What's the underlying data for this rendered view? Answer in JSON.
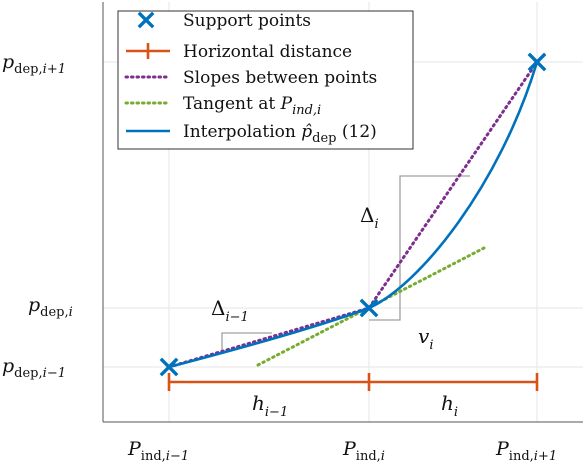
{
  "chart_data": {
    "type": "line",
    "x_ticks": [
      {
        "base": "P",
        "sub": "ind,",
        "subi": "i−1"
      },
      {
        "base": "P",
        "sub": "ind,",
        "subi": "i"
      },
      {
        "base": "P",
        "sub": "ind,",
        "subi": "i+1"
      }
    ],
    "y_ticks": [
      {
        "base": "p",
        "sub": "dep,",
        "subi": "i+1"
      },
      {
        "base": "p",
        "sub": "dep,",
        "subi": "i"
      },
      {
        "base": "p",
        "sub": "dep,",
        "subi": "i−1"
      }
    ],
    "legend": {
      "placement": "top-left",
      "entries": [
        {
          "label": "Support points",
          "color": "#1f77b4",
          "style": "marker-x"
        },
        {
          "label": "Horizontal distance",
          "color": "#d95319",
          "style": "errorbar"
        },
        {
          "label": "Slopes between points",
          "color": "#7e2f8e",
          "style": "dotted"
        },
        {
          "label": "Tangent at ",
          "label_math": "P",
          "label_sub": "ind,i",
          "color": "#77ac30",
          "style": "dotted"
        },
        {
          "label": "Interpolation ",
          "label_math": "p̂",
          "label_sub": "dep",
          "label_suffix": " (12)",
          "color": "#0072bd",
          "style": "solid"
        }
      ]
    },
    "annotations": {
      "delta_i": {
        "base": "Δ",
        "sub": "i"
      },
      "delta_im1": {
        "base": "Δ",
        "sub": "i−1"
      },
      "v_i": {
        "base": "v",
        "sub": "i"
      },
      "h_im1": {
        "base": "h",
        "sub": "i−1"
      },
      "h_i": {
        "base": "h",
        "sub": "i"
      }
    },
    "grid": true,
    "xlim": [
      -0.35,
      2.2
    ],
    "ylim": [
      -0.2,
      1.5
    ]
  }
}
